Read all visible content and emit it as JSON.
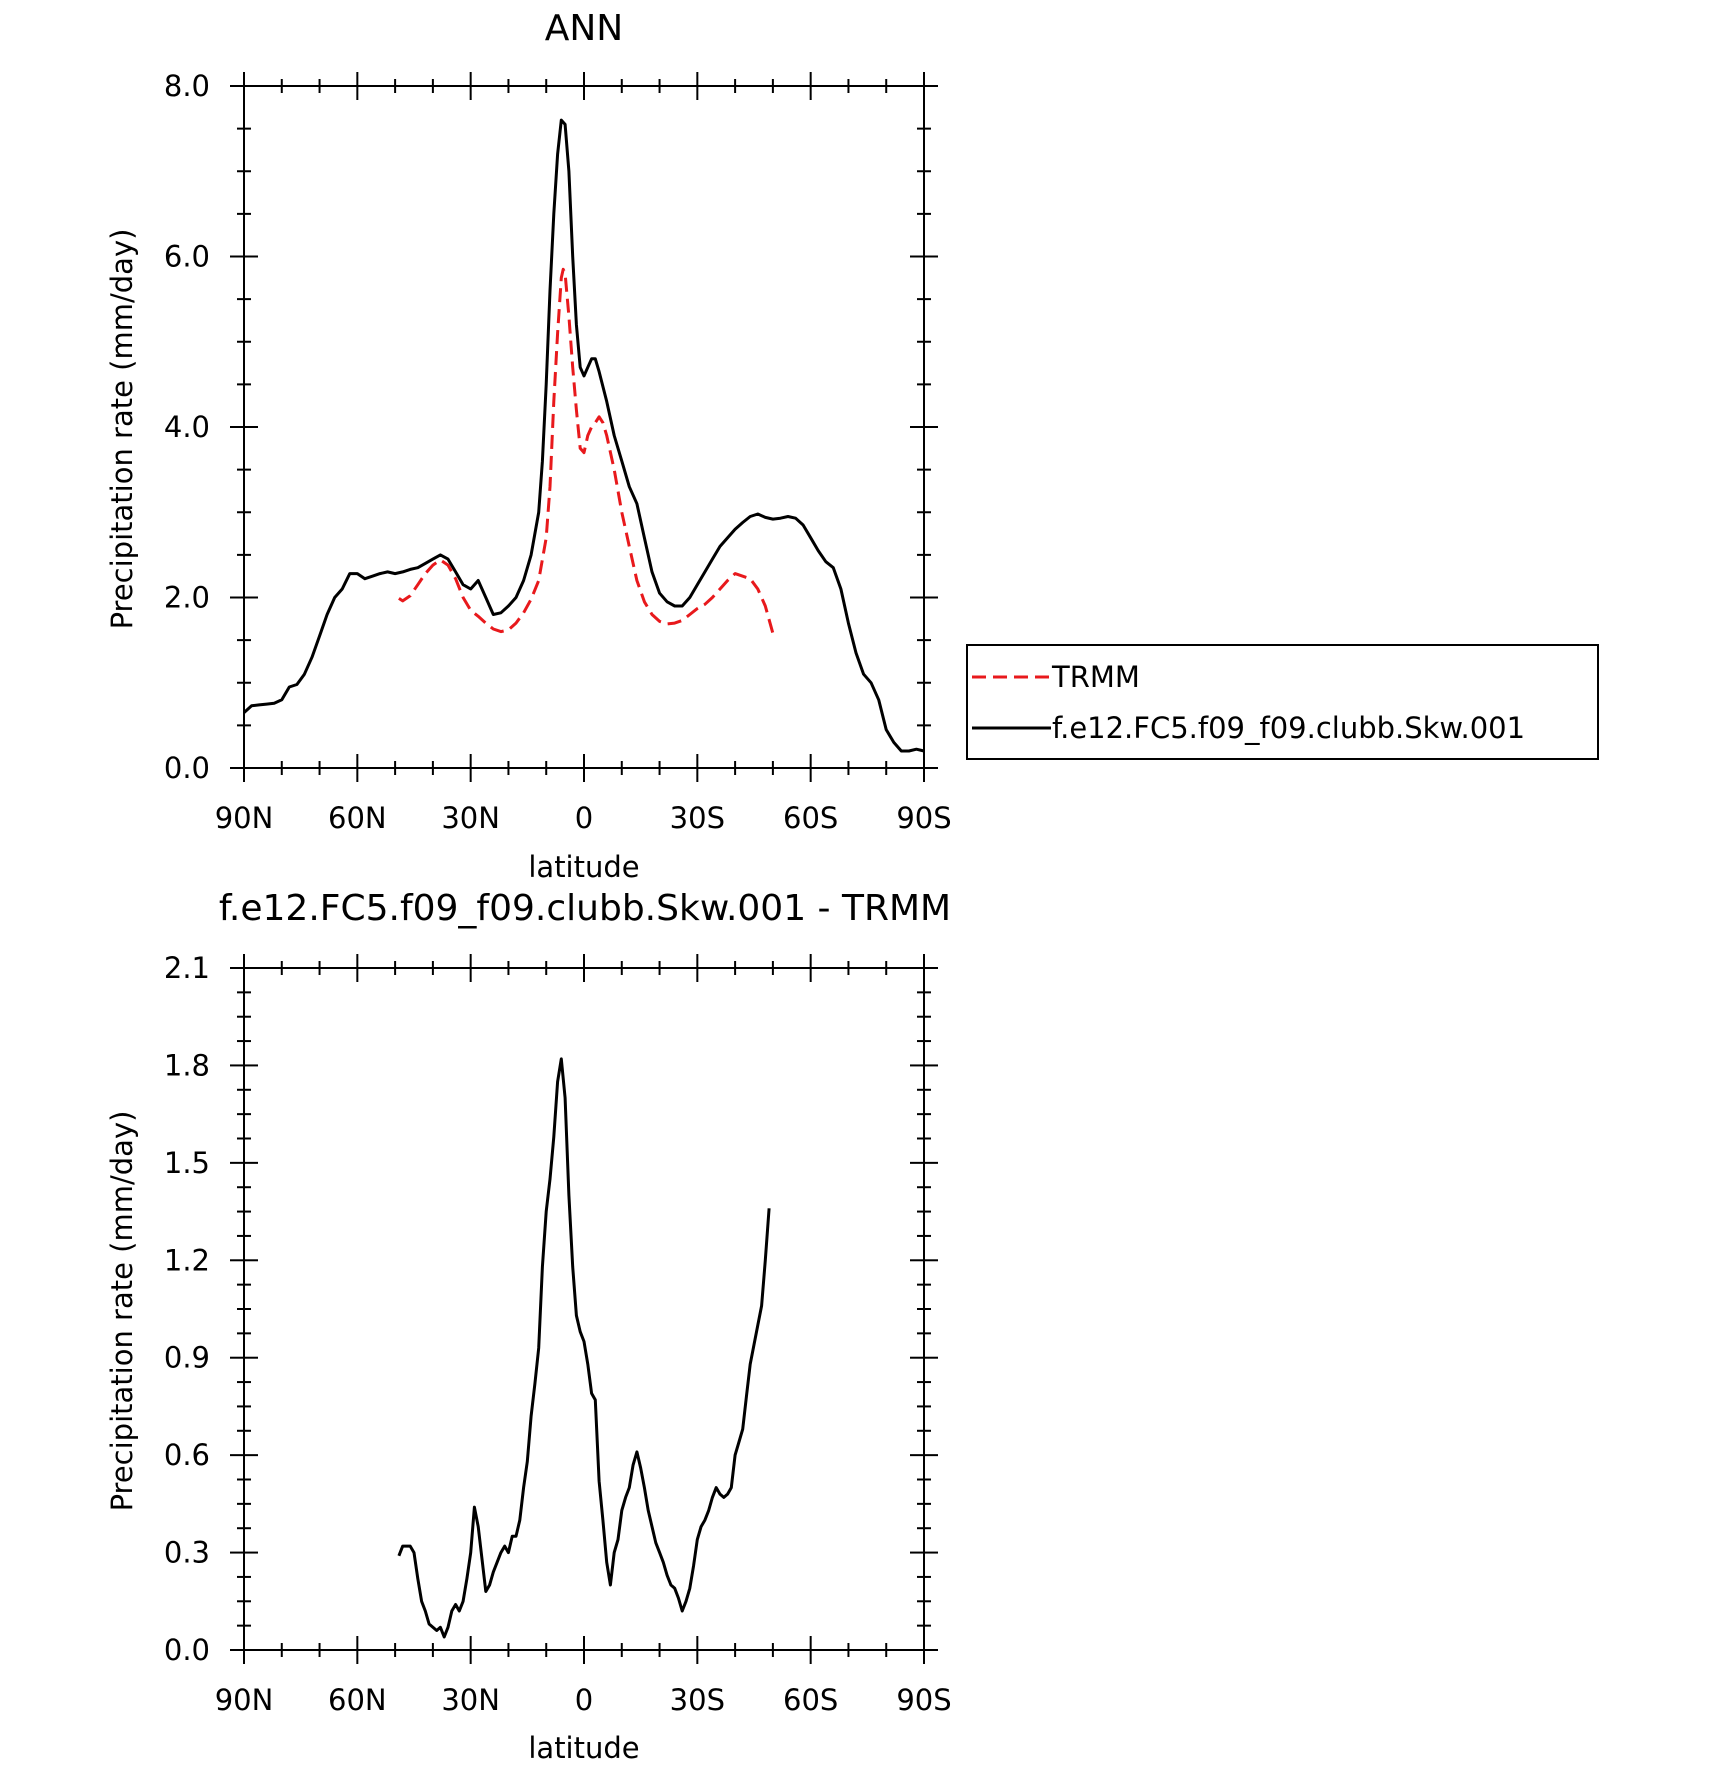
{
  "chart_data": [
    {
      "type": "line",
      "title": "ANN",
      "xlabel": "latitude",
      "ylabel": "Precipitation rate (mm/day)",
      "xlim": [
        90,
        -90
      ],
      "ylim": [
        0,
        8
      ],
      "x_ticks": [
        90,
        60,
        30,
        0,
        -30,
        -60,
        -90
      ],
      "x_tick_labels": [
        "90N",
        "60N",
        "30N",
        "0",
        "30S",
        "60S",
        "90S"
      ],
      "y_ticks": [
        0,
        2,
        4,
        6,
        8
      ],
      "y_tick_labels": [
        "0.0",
        "2.0",
        "4.0",
        "6.0",
        "8.0"
      ],
      "grid": false,
      "legend_position": "right",
      "series": [
        {
          "name": "TRMM",
          "color": "#e8191c",
          "dash": "dashed",
          "points": [
            [
              49,
              1.99
            ],
            [
              48,
              1.96
            ],
            [
              46,
              2.02
            ],
            [
              44,
              2.15
            ],
            [
              42,
              2.28
            ],
            [
              40,
              2.38
            ],
            [
              38,
              2.44
            ],
            [
              36,
              2.38
            ],
            [
              34,
              2.22
            ],
            [
              32,
              2.0
            ],
            [
              30,
              1.85
            ],
            [
              28,
              1.78
            ],
            [
              26,
              1.7
            ],
            [
              24,
              1.63
            ],
            [
              22,
              1.6
            ],
            [
              20,
              1.62
            ],
            [
              18,
              1.7
            ],
            [
              16,
              1.82
            ],
            [
              14,
              1.98
            ],
            [
              12,
              2.2
            ],
            [
              10,
              2.7
            ],
            [
              9,
              3.3
            ],
            [
              8,
              4.3
            ],
            [
              7,
              5.1
            ],
            [
              6,
              5.75
            ],
            [
              5.5,
              5.85
            ],
            [
              5,
              5.8
            ],
            [
              4,
              5.3
            ],
            [
              3,
              4.7
            ],
            [
              2,
              4.2
            ],
            [
              1,
              3.75
            ],
            [
              0,
              3.7
            ],
            [
              -1,
              3.9
            ],
            [
              -2,
              4.0
            ],
            [
              -3,
              4.05
            ],
            [
              -4,
              4.12
            ],
            [
              -5,
              4.05
            ],
            [
              -6,
              3.9
            ],
            [
              -8,
              3.5
            ],
            [
              -10,
              3.0
            ],
            [
              -12,
              2.6
            ],
            [
              -14,
              2.2
            ],
            [
              -16,
              1.95
            ],
            [
              -18,
              1.8
            ],
            [
              -20,
              1.72
            ],
            [
              -22,
              1.69
            ],
            [
              -24,
              1.7
            ],
            [
              -26,
              1.73
            ],
            [
              -28,
              1.8
            ],
            [
              -30,
              1.87
            ],
            [
              -32,
              1.92
            ],
            [
              -34,
              2.0
            ],
            [
              -36,
              2.1
            ],
            [
              -38,
              2.2
            ],
            [
              -40,
              2.28
            ],
            [
              -42,
              2.25
            ],
            [
              -44,
              2.22
            ],
            [
              -46,
              2.1
            ],
            [
              -48,
              1.9
            ],
            [
              -50,
              1.58
            ]
          ]
        },
        {
          "name": "f.e12.FC5.f09_f09.clubb.Skw.001",
          "color": "#000000",
          "dash": "solid",
          "points": [
            [
              90,
              0.65
            ],
            [
              88,
              0.73
            ],
            [
              86,
              0.74
            ],
            [
              84,
              0.75
            ],
            [
              82,
              0.76
            ],
            [
              80,
              0.8
            ],
            [
              78,
              0.95
            ],
            [
              76,
              0.98
            ],
            [
              74,
              1.1
            ],
            [
              72,
              1.3
            ],
            [
              70,
              1.55
            ],
            [
              68,
              1.8
            ],
            [
              66,
              2.0
            ],
            [
              64,
              2.1
            ],
            [
              62,
              2.28
            ],
            [
              60,
              2.28
            ],
            [
              58,
              2.22
            ],
            [
              56,
              2.25
            ],
            [
              54,
              2.28
            ],
            [
              52,
              2.3
            ],
            [
              50,
              2.28
            ],
            [
              48,
              2.3
            ],
            [
              46,
              2.33
            ],
            [
              44,
              2.35
            ],
            [
              42,
              2.4
            ],
            [
              40,
              2.45
            ],
            [
              38,
              2.5
            ],
            [
              36,
              2.45
            ],
            [
              34,
              2.3
            ],
            [
              32,
              2.15
            ],
            [
              30,
              2.1
            ],
            [
              28,
              2.2
            ],
            [
              26,
              2.0
            ],
            [
              24,
              1.8
            ],
            [
              22,
              1.82
            ],
            [
              20,
              1.9
            ],
            [
              18,
              2.0
            ],
            [
              16,
              2.2
            ],
            [
              14,
              2.5
            ],
            [
              12,
              3.0
            ],
            [
              11,
              3.6
            ],
            [
              10,
              4.5
            ],
            [
              9,
              5.6
            ],
            [
              8,
              6.5
            ],
            [
              7,
              7.2
            ],
            [
              6,
              7.6
            ],
            [
              5,
              7.55
            ],
            [
              4,
              7.0
            ],
            [
              3,
              6.0
            ],
            [
              2,
              5.2
            ],
            [
              1,
              4.7
            ],
            [
              0,
              4.6
            ],
            [
              -1,
              4.7
            ],
            [
              -2,
              4.8
            ],
            [
              -3,
              4.8
            ],
            [
              -4,
              4.65
            ],
            [
              -6,
              4.3
            ],
            [
              -8,
              3.9
            ],
            [
              -10,
              3.6
            ],
            [
              -12,
              3.3
            ],
            [
              -14,
              3.1
            ],
            [
              -16,
              2.7
            ],
            [
              -18,
              2.3
            ],
            [
              -20,
              2.05
            ],
            [
              -22,
              1.95
            ],
            [
              -24,
              1.9
            ],
            [
              -26,
              1.9
            ],
            [
              -28,
              2.0
            ],
            [
              -30,
              2.15
            ],
            [
              -32,
              2.3
            ],
            [
              -34,
              2.45
            ],
            [
              -36,
              2.6
            ],
            [
              -38,
              2.7
            ],
            [
              -40,
              2.8
            ],
            [
              -42,
              2.88
            ],
            [
              -44,
              2.95
            ],
            [
              -46,
              2.98
            ],
            [
              -48,
              2.94
            ],
            [
              -50,
              2.92
            ],
            [
              -52,
              2.93
            ],
            [
              -54,
              2.95
            ],
            [
              -56,
              2.93
            ],
            [
              -58,
              2.85
            ],
            [
              -60,
              2.7
            ],
            [
              -62,
              2.55
            ],
            [
              -64,
              2.42
            ],
            [
              -66,
              2.35
            ],
            [
              -68,
              2.1
            ],
            [
              -70,
              1.7
            ],
            [
              -72,
              1.35
            ],
            [
              -74,
              1.1
            ],
            [
              -76,
              1.0
            ],
            [
              -78,
              0.8
            ],
            [
              -80,
              0.45
            ],
            [
              -82,
              0.3
            ],
            [
              -84,
              0.2
            ],
            [
              -86,
              0.2
            ],
            [
              -88,
              0.22
            ],
            [
              -90,
              0.2
            ]
          ]
        }
      ]
    },
    {
      "type": "line",
      "title": "f.e12.FC5.f09_f09.clubb.Skw.001 - TRMM",
      "xlabel": "latitude",
      "ylabel": "Precipitation rate (mm/day)",
      "xlim": [
        90,
        -90
      ],
      "ylim": [
        0,
        2.1
      ],
      "x_ticks": [
        90,
        60,
        30,
        0,
        -30,
        -60,
        -90
      ],
      "x_tick_labels": [
        "90N",
        "60N",
        "30N",
        "0",
        "30S",
        "60S",
        "90S"
      ],
      "y_ticks": [
        0,
        0.3,
        0.6,
        0.9,
        1.2,
        1.5,
        1.8,
        2.1
      ],
      "y_tick_labels": [
        "0.0",
        "0.3",
        "0.6",
        "0.9",
        "1.2",
        "1.5",
        "1.8",
        "2.1"
      ],
      "grid": false,
      "series": [
        {
          "color": "#000000",
          "dash": "solid",
          "points": [
            [
              49,
              0.29
            ],
            [
              48,
              0.32
            ],
            [
              46,
              0.32
            ],
            [
              45,
              0.3
            ],
            [
              44,
              0.22
            ],
            [
              43,
              0.15
            ],
            [
              42,
              0.12
            ],
            [
              41,
              0.08
            ],
            [
              40,
              0.07
            ],
            [
              39,
              0.06
            ],
            [
              38,
              0.07
            ],
            [
              37,
              0.04
            ],
            [
              36,
              0.07
            ],
            [
              35,
              0.12
            ],
            [
              34,
              0.14
            ],
            [
              33,
              0.12
            ],
            [
              32,
              0.15
            ],
            [
              31,
              0.22
            ],
            [
              30,
              0.3
            ],
            [
              29,
              0.44
            ],
            [
              28,
              0.38
            ],
            [
              27,
              0.28
            ],
            [
              26,
              0.18
            ],
            [
              25,
              0.2
            ],
            [
              24,
              0.24
            ],
            [
              23,
              0.27
            ],
            [
              22,
              0.3
            ],
            [
              21,
              0.32
            ],
            [
              20,
              0.3
            ],
            [
              19,
              0.35
            ],
            [
              18,
              0.35
            ],
            [
              17,
              0.4
            ],
            [
              16,
              0.5
            ],
            [
              15,
              0.58
            ],
            [
              14,
              0.72
            ],
            [
              13,
              0.82
            ],
            [
              12,
              0.93
            ],
            [
              11,
              1.18
            ],
            [
              10,
              1.35
            ],
            [
              9,
              1.45
            ],
            [
              8,
              1.58
            ],
            [
              7,
              1.75
            ],
            [
              6,
              1.82
            ],
            [
              5,
              1.7
            ],
            [
              4,
              1.4
            ],
            [
              3,
              1.18
            ],
            [
              2,
              1.03
            ],
            [
              1,
              0.98
            ],
            [
              0,
              0.95
            ],
            [
              -1,
              0.88
            ],
            [
              -2,
              0.79
            ],
            [
              -3,
              0.77
            ],
            [
              -4,
              0.52
            ],
            [
              -5,
              0.4
            ],
            [
              -6,
              0.27
            ],
            [
              -7,
              0.2
            ],
            [
              -8,
              0.3
            ],
            [
              -9,
              0.34
            ],
            [
              -10,
              0.43
            ],
            [
              -11,
              0.47
            ],
            [
              -12,
              0.5
            ],
            [
              -13,
              0.57
            ],
            [
              -14,
              0.61
            ],
            [
              -15,
              0.56
            ],
            [
              -16,
              0.5
            ],
            [
              -17,
              0.43
            ],
            [
              -18,
              0.38
            ],
            [
              -19,
              0.33
            ],
            [
              -20,
              0.3
            ],
            [
              -21,
              0.27
            ],
            [
              -22,
              0.23
            ],
            [
              -23,
              0.2
            ],
            [
              -24,
              0.19
            ],
            [
              -25,
              0.16
            ],
            [
              -26,
              0.12
            ],
            [
              -27,
              0.15
            ],
            [
              -28,
              0.19
            ],
            [
              -29,
              0.26
            ],
            [
              -30,
              0.34
            ],
            [
              -31,
              0.38
            ],
            [
              -32,
              0.4
            ],
            [
              -33,
              0.43
            ],
            [
              -34,
              0.47
            ],
            [
              -35,
              0.5
            ],
            [
              -36,
              0.48
            ],
            [
              -37,
              0.47
            ],
            [
              -38,
              0.48
            ],
            [
              -39,
              0.5
            ],
            [
              -40,
              0.6
            ],
            [
              -41,
              0.64
            ],
            [
              -42,
              0.68
            ],
            [
              -43,
              0.78
            ],
            [
              -44,
              0.88
            ],
            [
              -45,
              0.94
            ],
            [
              -46,
              1.0
            ],
            [
              -47,
              1.06
            ],
            [
              -48,
              1.2
            ],
            [
              -49,
              1.36
            ]
          ]
        }
      ]
    }
  ]
}
